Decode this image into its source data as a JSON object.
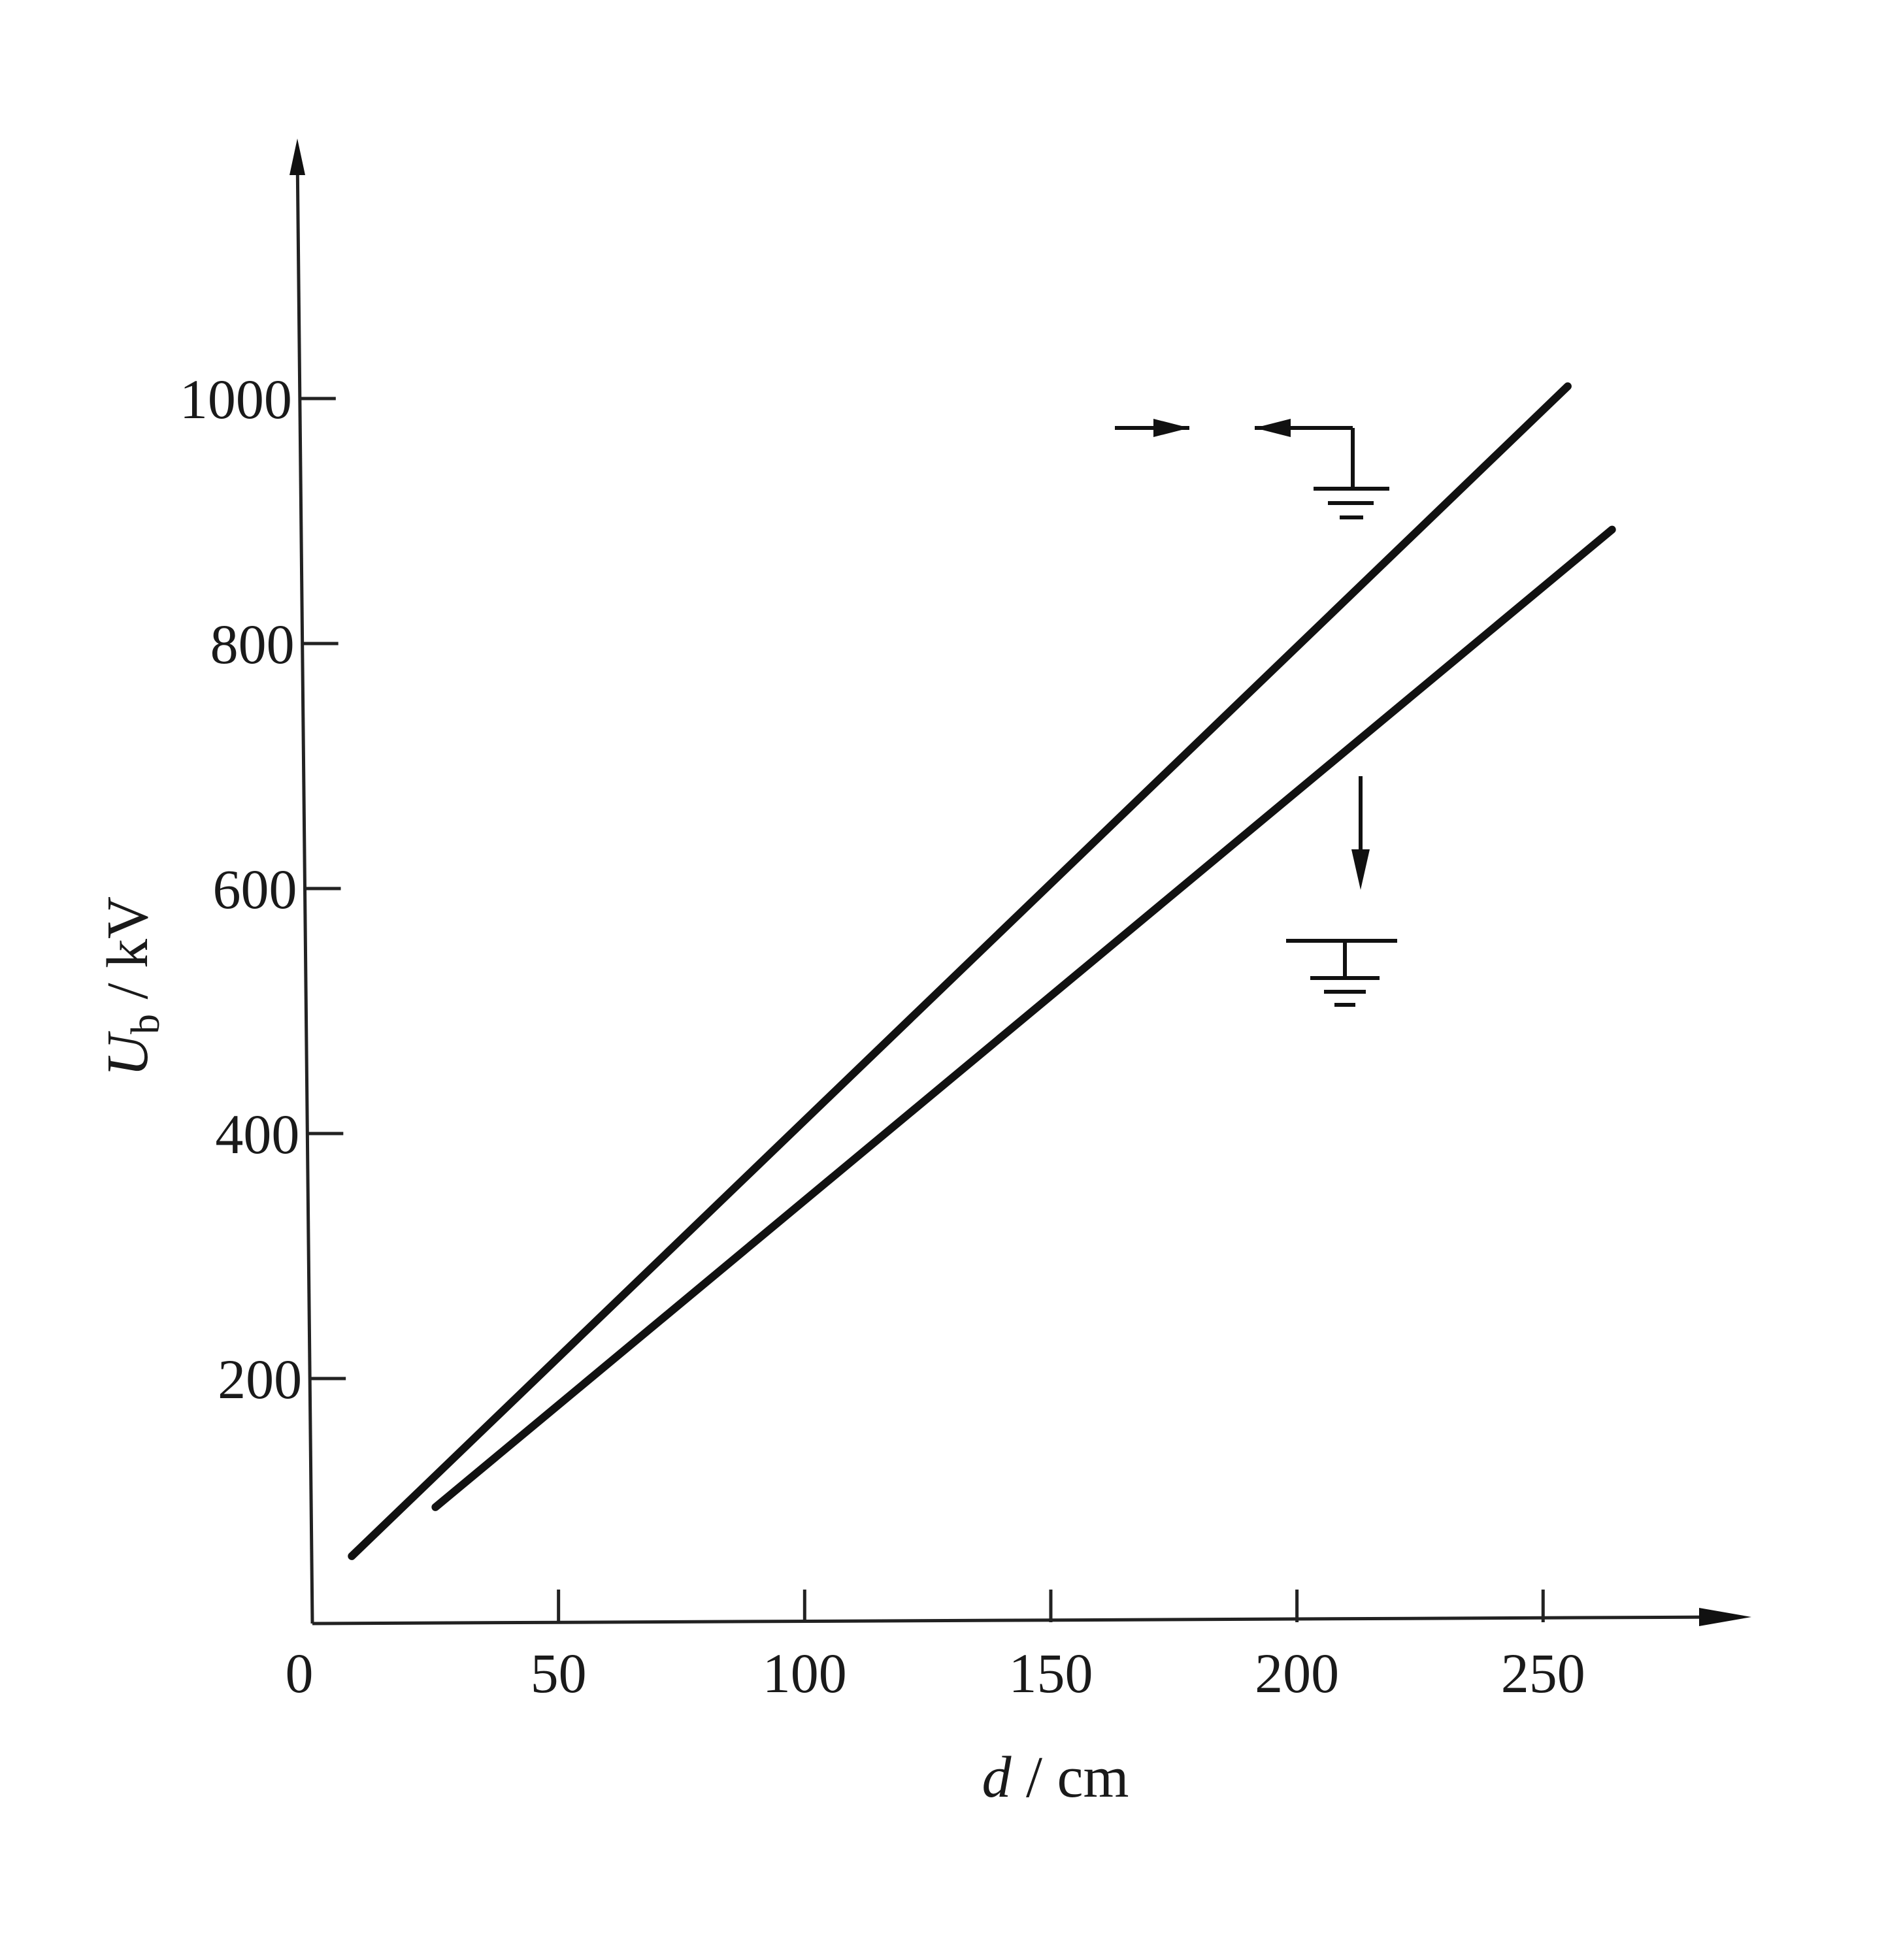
{
  "chart_data": {
    "type": "line",
    "xlabel_var": "d",
    "xlabel_unit": " / cm",
    "ylabel_var": "U",
    "ylabel_sub": "b",
    "ylabel_unit": " / kV",
    "origin_label": "0",
    "xlim": [
      0,
      287
    ],
    "ylim": [
      0,
      1200
    ],
    "x_ticks": [
      50,
      100,
      150,
      200,
      250
    ],
    "y_ticks": [
      200,
      400,
      600,
      800,
      1000
    ],
    "series": [
      {
        "x": [
          8,
          255
        ],
        "y": [
          55,
          1010
        ]
      },
      {
        "x": [
          25,
          264
        ],
        "y": [
          95,
          893
        ]
      }
    ]
  }
}
